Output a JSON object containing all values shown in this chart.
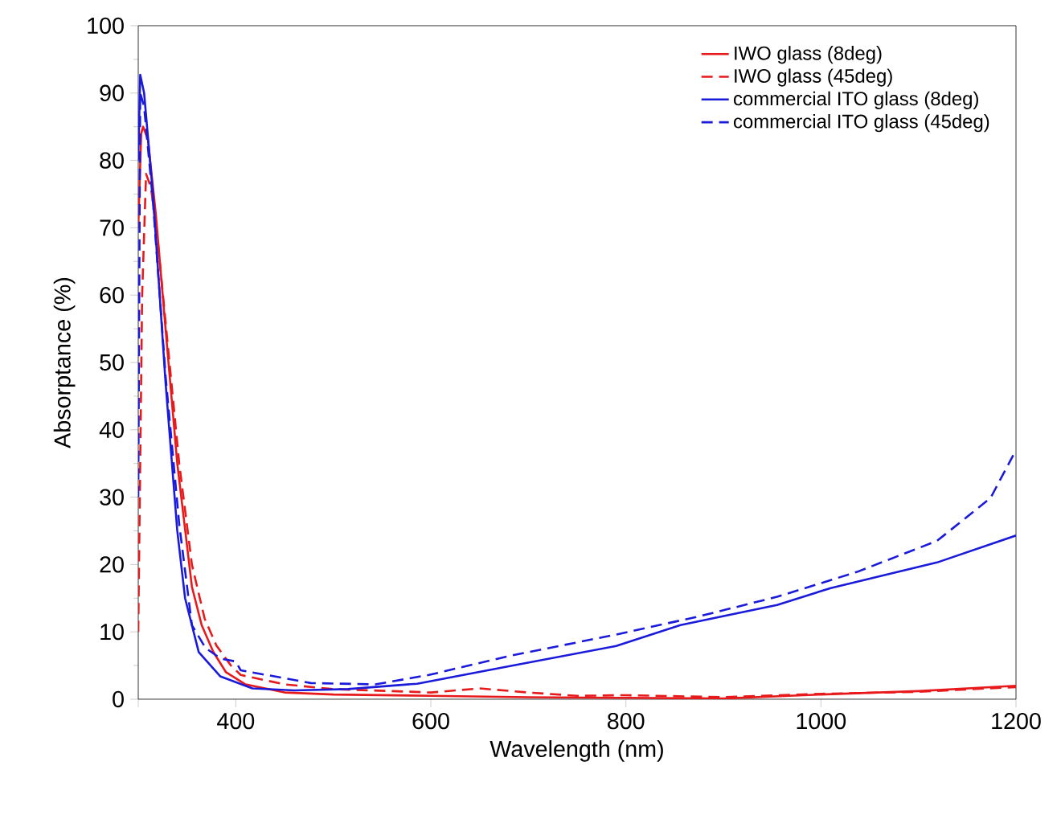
{
  "chart_data": {
    "type": "line",
    "xlabel": "Wavelength (nm)",
    "ylabel": "Absorptance (%)",
    "xlim": [
      300,
      1200
    ],
    "ylim": [
      0,
      100
    ],
    "xticks": [
      {
        "value": 300,
        "label": null
      },
      400,
      600,
      800,
      1000,
      1200
    ],
    "yticks": [
      0,
      10,
      20,
      30,
      40,
      50,
      60,
      70,
      80,
      90,
      100
    ],
    "grid": false,
    "legend": "top right",
    "marker": "none",
    "series": [
      {
        "name": "IWO glass (8deg)",
        "color": "#e8191b",
        "line_style": "solid",
        "x": [
          300,
          303,
          305,
          310,
          318,
          328,
          340,
          355,
          365,
          377,
          390,
          410,
          450,
          500,
          600,
          700,
          800,
          900,
          1000,
          1100,
          1200
        ],
        "values": [
          70,
          84,
          85,
          83,
          72,
          55,
          35,
          16.7,
          11,
          7,
          4,
          2.2,
          1,
          0.7,
          0.5,
          0.3,
          0.2,
          0.1,
          0.7,
          1.2,
          2.0
        ]
      },
      {
        "name": "IWO glass (45deg)",
        "color": "#e8191b",
        "line_style": "dashed",
        "x": [
          300,
          304,
          308,
          313,
          320,
          330,
          342,
          355,
          368,
          380,
          395,
          405,
          450,
          500,
          600,
          650,
          700,
          750,
          800,
          900,
          1000,
          1100,
          1200
        ],
        "values": [
          10,
          60,
          78,
          76,
          68,
          53,
          35,
          20,
          12,
          8,
          5,
          3.6,
          2.2,
          1.5,
          1.0,
          1.6,
          1.0,
          0.5,
          0.6,
          0.3,
          0.8,
          1.1,
          1.8
        ]
      },
      {
        "name": "commercial ITO glass (8deg)",
        "color": "#1a1adb",
        "line_style": "solid",
        "x": [
          300,
          302,
          306,
          315,
          328,
          340,
          348,
          362,
          384,
          417,
          460,
          515,
          586,
          680,
          790,
          856,
          955,
          1010,
          1119,
          1200
        ],
        "values": [
          80,
          92.7,
          90,
          75,
          47,
          25,
          15,
          7,
          3.4,
          1.6,
          1.3,
          1.5,
          2.3,
          4.9,
          7.9,
          11,
          14,
          16.5,
          20.3,
          24.3
        ]
      },
      {
        "name": "commercial ITO glass (45deg)",
        "color": "#1a1adb",
        "line_style": "dashed",
        "x": [
          300,
          302,
          306,
          315,
          328,
          342,
          355,
          369,
          385,
          400,
          405,
          477,
          543,
          598,
          680,
          790,
          872,
          955,
          1037,
          1119,
          1174,
          1200
        ],
        "values": [
          30,
          90,
          88,
          74,
          48,
          26,
          11,
          7.6,
          6,
          5.6,
          4.3,
          2.4,
          2.2,
          3.6,
          6.4,
          9.6,
          12.2,
          15.2,
          18.9,
          23.5,
          29.9,
          37
        ]
      }
    ]
  }
}
